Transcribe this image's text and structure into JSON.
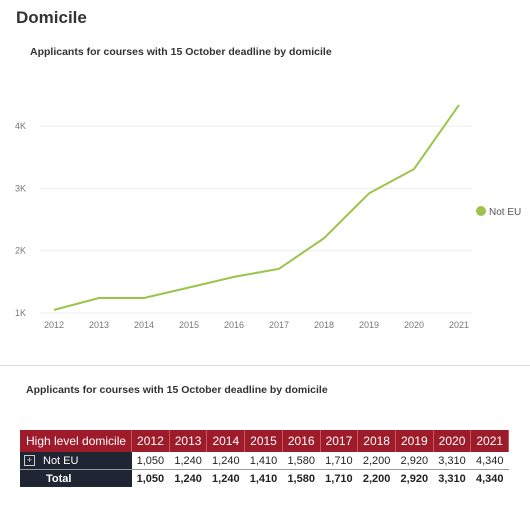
{
  "page": {
    "title": "Domicile"
  },
  "chart": {
    "title": "Applicants for courses with 15 October deadline by domicile",
    "legend_label": "Not EU"
  },
  "chart_data": {
    "type": "line",
    "title": "Applicants for courses with 15 October deadline by domicile",
    "xlabel": "",
    "ylabel": "",
    "x": [
      "2012",
      "2013",
      "2014",
      "2015",
      "2016",
      "2017",
      "2018",
      "2019",
      "2020",
      "2021"
    ],
    "y_ticks": [
      "1K",
      "2K",
      "3K",
      "4K"
    ],
    "ylim": [
      1000,
      4400
    ],
    "grid": true,
    "legend_position": "right",
    "series": [
      {
        "name": "Not EU",
        "color": "#9dc34a",
        "values": [
          1050,
          1240,
          1240,
          1410,
          1580,
          1710,
          2200,
          2920,
          3310,
          4340
        ]
      }
    ]
  },
  "table": {
    "title": "Applicants for courses with 15 October deadline  by domicile",
    "header_label": "High level domicile",
    "years": [
      "2012",
      "2013",
      "2014",
      "2015",
      "2016",
      "2017",
      "2018",
      "2019",
      "2020",
      "2021"
    ],
    "expand_icon": "+",
    "rows": [
      {
        "label": "Not EU",
        "values": [
          "1,050",
          "1,240",
          "1,240",
          "1,410",
          "1,580",
          "1,710",
          "2,200",
          "2,920",
          "3,310",
          "4,340"
        ]
      },
      {
        "label": "Total",
        "values": [
          "1,050",
          "1,240",
          "1,240",
          "1,410",
          "1,580",
          "1,710",
          "2,200",
          "2,920",
          "3,310",
          "4,340"
        ]
      }
    ],
    "header_color": "#9e1b2a"
  }
}
